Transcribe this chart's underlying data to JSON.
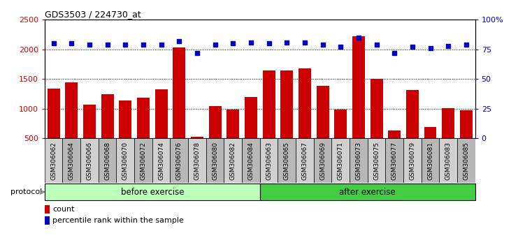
{
  "title": "GDS3503 / 224730_at",
  "samples": [
    "GSM306062",
    "GSM306064",
    "GSM306066",
    "GSM306068",
    "GSM306070",
    "GSM306072",
    "GSM306074",
    "GSM306076",
    "GSM306078",
    "GSM306080",
    "GSM306082",
    "GSM306084",
    "GSM306063",
    "GSM306065",
    "GSM306067",
    "GSM306069",
    "GSM306071",
    "GSM306073",
    "GSM306075",
    "GSM306077",
    "GSM306079",
    "GSM306081",
    "GSM306083",
    "GSM306085"
  ],
  "counts": [
    1340,
    1450,
    1070,
    1250,
    1140,
    1180,
    1330,
    2030,
    530,
    1050,
    980,
    1200,
    1640,
    1650,
    1680,
    1380,
    980,
    2220,
    1500,
    630,
    1310,
    690,
    1010,
    970
  ],
  "percentile": [
    80,
    80,
    79,
    79,
    79,
    79,
    79,
    82,
    72,
    79,
    80,
    81,
    80,
    81,
    81,
    79,
    77,
    85,
    79,
    72,
    77,
    76,
    78,
    79
  ],
  "before_count": 12,
  "after_count": 12,
  "bar_color": "#cc0000",
  "dot_color": "#0000cc",
  "before_color": "#bbffbb",
  "after_color": "#44cc44",
  "ylim_left": [
    500,
    2500
  ],
  "ylim_right": [
    0,
    100
  ],
  "yticks_left": [
    500,
    1000,
    1500,
    2000,
    2500
  ],
  "yticks_right": [
    0,
    25,
    50,
    75,
    100
  ],
  "grid_values": [
    1000,
    1500,
    2000
  ],
  "bg_color": "#ffffff",
  "tick_bg_color": "#d8d8d8",
  "protocol_label": "protocol",
  "before_label": "before exercise",
  "after_label": "after exercise",
  "legend_count": "count",
  "legend_pct": "percentile rank within the sample"
}
